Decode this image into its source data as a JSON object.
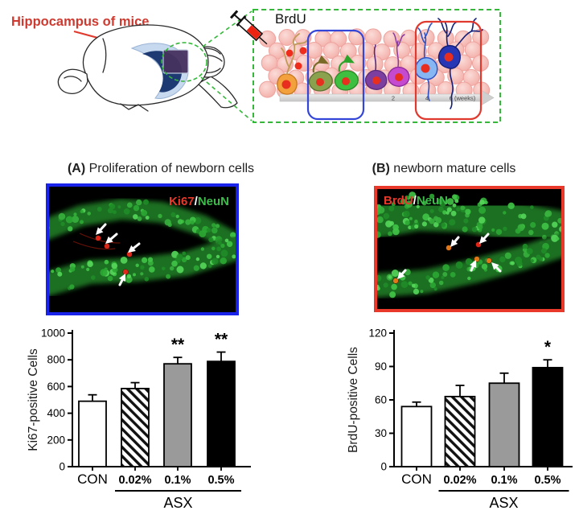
{
  "figure": {
    "schematic": {
      "brain_label": "Hippocampus of mice",
      "injection_label": "BrdU",
      "timeline_ticks": [
        "2",
        "4",
        "6 (weeks)"
      ],
      "colors": {
        "label_red": "#cf3a30",
        "inset_border_green": "#35b83a",
        "early_stage_box_blue": "#3346d8",
        "late_stage_box_red": "#e0392e",
        "hippocampus_navy": "#1d3a72",
        "hippocampus_light_blue": "#c7d9ee"
      }
    },
    "panelA": {
      "id": "(A)",
      "title": "Proliferation of newborn cells",
      "stain_red": "Ki67",
      "stain_sep": "/",
      "stain_green": "NeuN",
      "border_color": "#1a23ea"
    },
    "panelB": {
      "id": "(B)",
      "title": "newborn mature cells",
      "stain_red": "BrdU",
      "stain_sep": "/",
      "stain_green": "NeuN",
      "border_color": "#e8392a"
    }
  },
  "chart_data": [
    {
      "type": "bar",
      "panel": "A",
      "title": "",
      "xlabel": "",
      "ylabel": "Ki67-positive Cells",
      "categories": [
        "CON",
        "0.02%",
        "0.1%",
        "0.5%"
      ],
      "values": [
        490,
        585,
        770,
        788
      ],
      "errors": [
        48,
        44,
        48,
        70
      ],
      "significance": [
        "",
        "",
        "**",
        "**"
      ],
      "bar_styles": [
        "white",
        "hatch",
        "gray",
        "black"
      ],
      "bar_colors": {
        "white": "#ffffff",
        "gray": "#9a9a9a",
        "black": "#000000"
      },
      "ylim": [
        0,
        1000
      ],
      "yticks": [
        0,
        200,
        400,
        600,
        800,
        1000
      ],
      "grid": "off",
      "legend": "none",
      "group_label": "ASX",
      "group_span": [
        1,
        3
      ]
    },
    {
      "type": "bar",
      "panel": "B",
      "title": "",
      "xlabel": "",
      "ylabel": "BrdU-positive Cells",
      "categories": [
        "CON",
        "0.02%",
        "0.1%",
        "0.5%"
      ],
      "values": [
        54,
        63,
        75,
        89
      ],
      "errors": [
        4,
        10,
        9,
        7
      ],
      "significance": [
        "",
        "",
        "",
        "*"
      ],
      "bar_styles": [
        "white",
        "hatch",
        "gray",
        "black"
      ],
      "bar_colors": {
        "white": "#ffffff",
        "gray": "#9a9a9a",
        "black": "#000000"
      },
      "ylim": [
        0,
        120
      ],
      "yticks": [
        0,
        30,
        60,
        90,
        120
      ],
      "grid": "off",
      "legend": "none",
      "group_label": "ASX",
      "group_span": [
        1,
        3
      ]
    }
  ]
}
